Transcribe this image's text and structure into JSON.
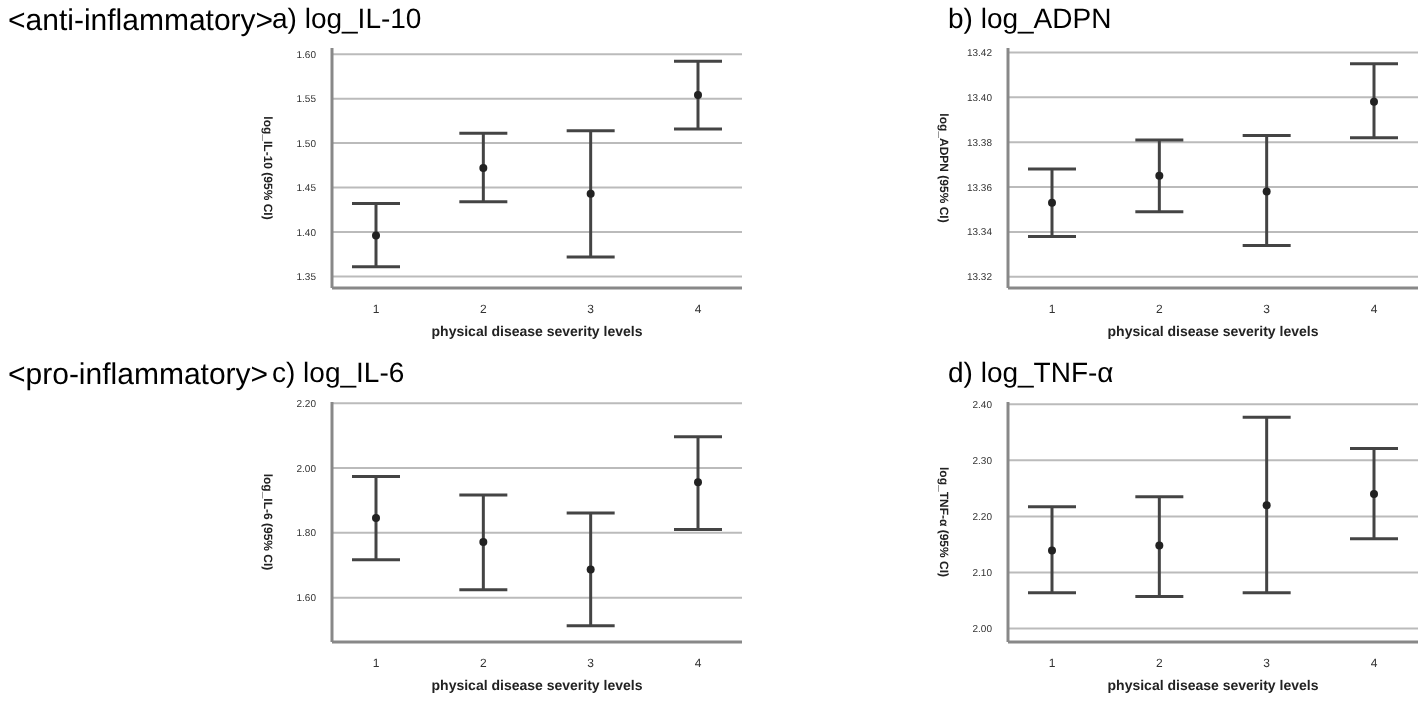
{
  "chart_data": [
    {
      "type": "scatter",
      "title": "a) log_IL-10",
      "annotations": [
        "<anti-inflammatory>"
      ],
      "xlabel": "physical disease severity levels",
      "ylabel": "log_IL-10 (95% CI)",
      "categories": [
        "1",
        "2",
        "3",
        "4"
      ],
      "color": "#222222",
      "marker": "circle",
      "grid": "y",
      "values": [
        1.396,
        1.472,
        1.443,
        1.554
      ],
      "errors": [
        [
          1.361,
          1.432
        ],
        [
          1.434,
          1.511
        ],
        [
          1.372,
          1.514
        ],
        [
          1.516,
          1.592
        ]
      ],
      "ylim": [
        1.337,
        1.607
      ],
      "yticks": [
        {
          "value": 1.35,
          "label": "1.35"
        },
        {
          "value": 1.4,
          "label": "1.40"
        },
        {
          "value": 1.45,
          "label": "1.45"
        },
        {
          "value": 1.5,
          "label": "1.50"
        },
        {
          "value": 1.55,
          "label": "1.55"
        },
        {
          "value": 1.6,
          "label": "1.60"
        }
      ]
    },
    {
      "type": "scatter",
      "title": "b) log_ADPN",
      "xlabel": "physical disease severity levels",
      "ylabel": "log_ADPN (95% CI)",
      "categories": [
        "1",
        "2",
        "3",
        "4"
      ],
      "color": "#222222",
      "marker": "circle",
      "grid": "y",
      "values": [
        13.353,
        13.365,
        13.358,
        13.398
      ],
      "errors": [
        [
          13.338,
          13.368
        ],
        [
          13.349,
          13.381
        ],
        [
          13.334,
          13.383
        ],
        [
          13.382,
          13.415
        ]
      ],
      "ylim": [
        13.315,
        13.422
      ],
      "yticks": [
        {
          "value": 13.32,
          "label": "13.32"
        },
        {
          "value": 13.34,
          "label": "13.34"
        },
        {
          "value": 13.36,
          "label": "13.36"
        },
        {
          "value": 13.38,
          "label": "13.38"
        },
        {
          "value": 13.4,
          "label": "13.40"
        },
        {
          "value": 13.42,
          "label": "13.42"
        }
      ]
    },
    {
      "type": "scatter",
      "title": "c) log_IL-6",
      "annotations": [
        "<pro-inflammatory>"
      ],
      "xlabel": "physical disease severity levels",
      "ylabel": "log_IL-6 (95% CI)",
      "categories": [
        "1",
        "2",
        "3",
        "4"
      ],
      "color": "#222222",
      "marker": "circle",
      "grid": "y",
      "values": [
        1.846,
        1.772,
        1.687,
        1.956
      ],
      "errors": [
        [
          1.717,
          1.974
        ],
        [
          1.624,
          1.917
        ],
        [
          1.513,
          1.861
        ],
        [
          1.81,
          2.097
        ]
      ],
      "ylim": [
        1.463,
        2.204
      ],
      "yticks": [
        {
          "value": 1.6,
          "label": "1.60"
        },
        {
          "value": 1.8,
          "label": "1.80"
        },
        {
          "value": 2.0,
          "label": "2.00"
        },
        {
          "value": 2.2,
          "label": "2.20"
        }
      ]
    },
    {
      "type": "scatter",
      "title": "d) log_TNF-α",
      "xlabel": "physical disease severity levels",
      "ylabel": "log_TNF-α (95% CI)",
      "categories": [
        "1",
        "2",
        "3",
        "4"
      ],
      "color": "#222222",
      "marker": "circle",
      "grid": "y",
      "values": [
        2.139,
        2.148,
        2.22,
        2.24
      ],
      "errors": [
        [
          2.064,
          2.217
        ],
        [
          2.057,
          2.235
        ],
        [
          2.064,
          2.377
        ],
        [
          2.16,
          2.321
        ]
      ],
      "ylim": [
        1.976,
        2.404
      ],
      "yticks": [
        {
          "value": 2.0,
          "label": "2.00"
        },
        {
          "value": 2.1,
          "label": "2.10"
        },
        {
          "value": 2.2,
          "label": "2.20"
        },
        {
          "value": 2.3,
          "label": "2.30"
        },
        {
          "value": 2.4,
          "label": "2.40"
        }
      ]
    }
  ]
}
